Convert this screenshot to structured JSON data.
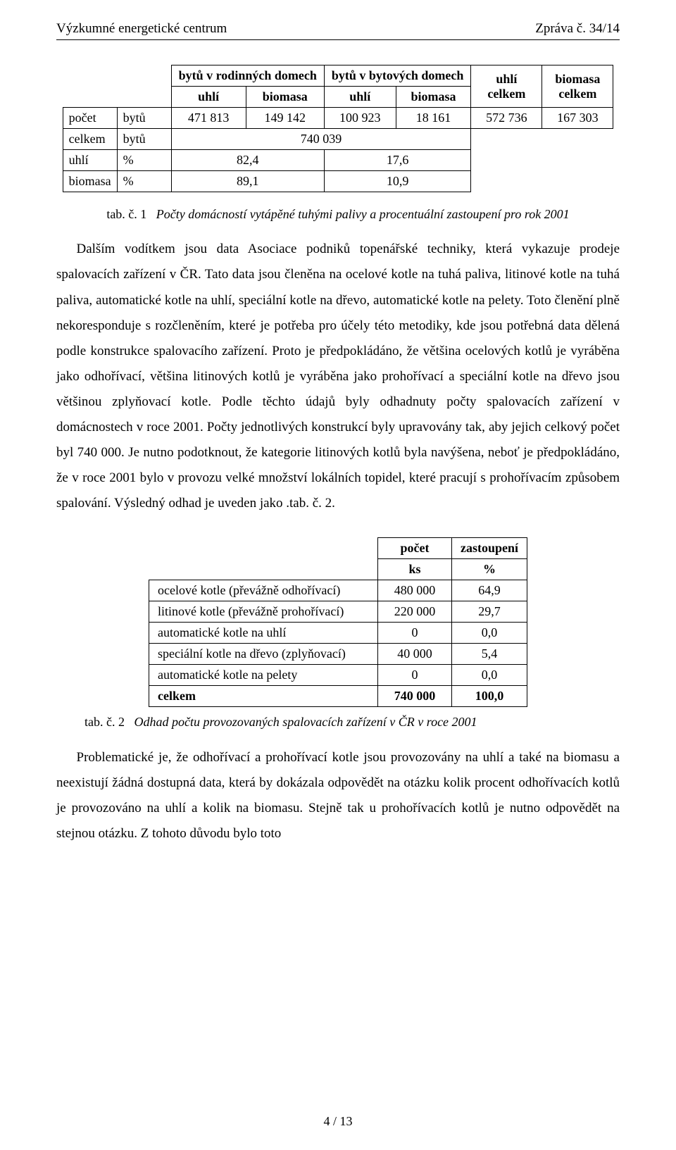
{
  "header": {
    "left": "Výzkumné energetické centrum",
    "right": "Zpráva č. 34/14"
  },
  "table1": {
    "head_group_a": "bytů v rodinných domech",
    "head_group_b": "bytů v bytových domech",
    "head_c": "uhlí celkem",
    "head_d": "biomasa celkem",
    "sub_uhli": "uhlí",
    "sub_biomasa": "biomasa",
    "row1_lbl": "počet",
    "row1_unit": "bytů",
    "row1_v1": "471 813",
    "row1_v2": "149 142",
    "row1_v3": "100 923",
    "row1_v4": "18 161",
    "row1_v5": "572 736",
    "row1_v6": "167 303",
    "row2_lbl": "celkem",
    "row2_unit": "bytů",
    "row2_span": "740 039",
    "row3_lbl": "uhlí",
    "row3_unit": "%",
    "row3_a": "82,4",
    "row3_b": "17,6",
    "row4_lbl": "biomasa",
    "row4_unit": "%",
    "row4_a": "89,1",
    "row4_b": "10,9"
  },
  "caption1_head": "tab. č. 1",
  "caption1_body": "Počty domácností vytápěné tuhými palivy a procentuální zastoupení pro rok 2001",
  "para1": "Dalším vodítkem jsou data Asociace podniků topenářské techniky, která vykazuje prodeje spalovacích zařízení v ČR. Tato data jsou členěna na ocelové kotle na tuhá paliva, litinové kotle na tuhá paliva, automatické kotle na uhlí, speciální kotle na dřevo, automatické kotle na pelety. Toto členění plně nekoresponduje s rozčleněním, které je potřeba pro účely této metodiky, kde jsou potřebná data dělená podle konstrukce spalovacího zařízení. Proto je předpokládáno, že většina ocelových kotlů je vyráběna jako odhořívací, většina litinových kotlů je vyráběna jako prohořívací a speciální kotle na dřevo jsou většinou zplyňovací kotle. Podle těchto údajů byly odhadnuty počty spalovacích zařízení v domácnostech v roce 2001. Počty jednotlivých konstrukcí byly upravovány tak, aby jejich celkový počet byl 740 000. Je nutno podotknout, že kategorie litinových kotlů byla navýšena, neboť je předpokládáno, že v roce 2001 bylo v provozu velké množství lokálních topidel, které pracují s prohořívacím způsobem spalování. Výsledný odhad je uveden jako .tab. č. 2.",
  "table2": {
    "h_pocet": "počet",
    "h_zast": "zastoupení",
    "u_ks": "ks",
    "u_pct": "%",
    "rows": [
      {
        "name": "ocelové kotle (převážně odhořívací)",
        "count": "480 000",
        "pct": "64,9"
      },
      {
        "name": "litinové kotle (převážně prohořívací)",
        "count": "220 000",
        "pct": "29,7"
      },
      {
        "name": "automatické kotle na uhlí",
        "count": "0",
        "pct": "0,0"
      },
      {
        "name": "speciální kotle na dřevo (zplyňovací)",
        "count": "40 000",
        "pct": "5,4"
      },
      {
        "name": "automatické kotle na pelety",
        "count": "0",
        "pct": "0,0"
      }
    ],
    "total_name": "celkem",
    "total_count": "740 000",
    "total_pct": "100,0"
  },
  "caption2_head": "tab. č. 2",
  "caption2_body": "Odhad počtu provozovaných spalovacích zařízení v ČR v roce 2001",
  "para2": "Problematické je, že odhořívací a prohořívací kotle jsou provozovány na uhlí a také na biomasu a neexistují žádná dostupná data, která by dokázala odpovědět na otázku kolik procent odhořívacích kotlů je provozováno na uhlí a kolik na biomasu. Stejně tak u prohořívacích kotlů je nutno odpovědět na stejnou otázku. Z tohoto důvodu bylo toto",
  "footer": "4 / 13"
}
